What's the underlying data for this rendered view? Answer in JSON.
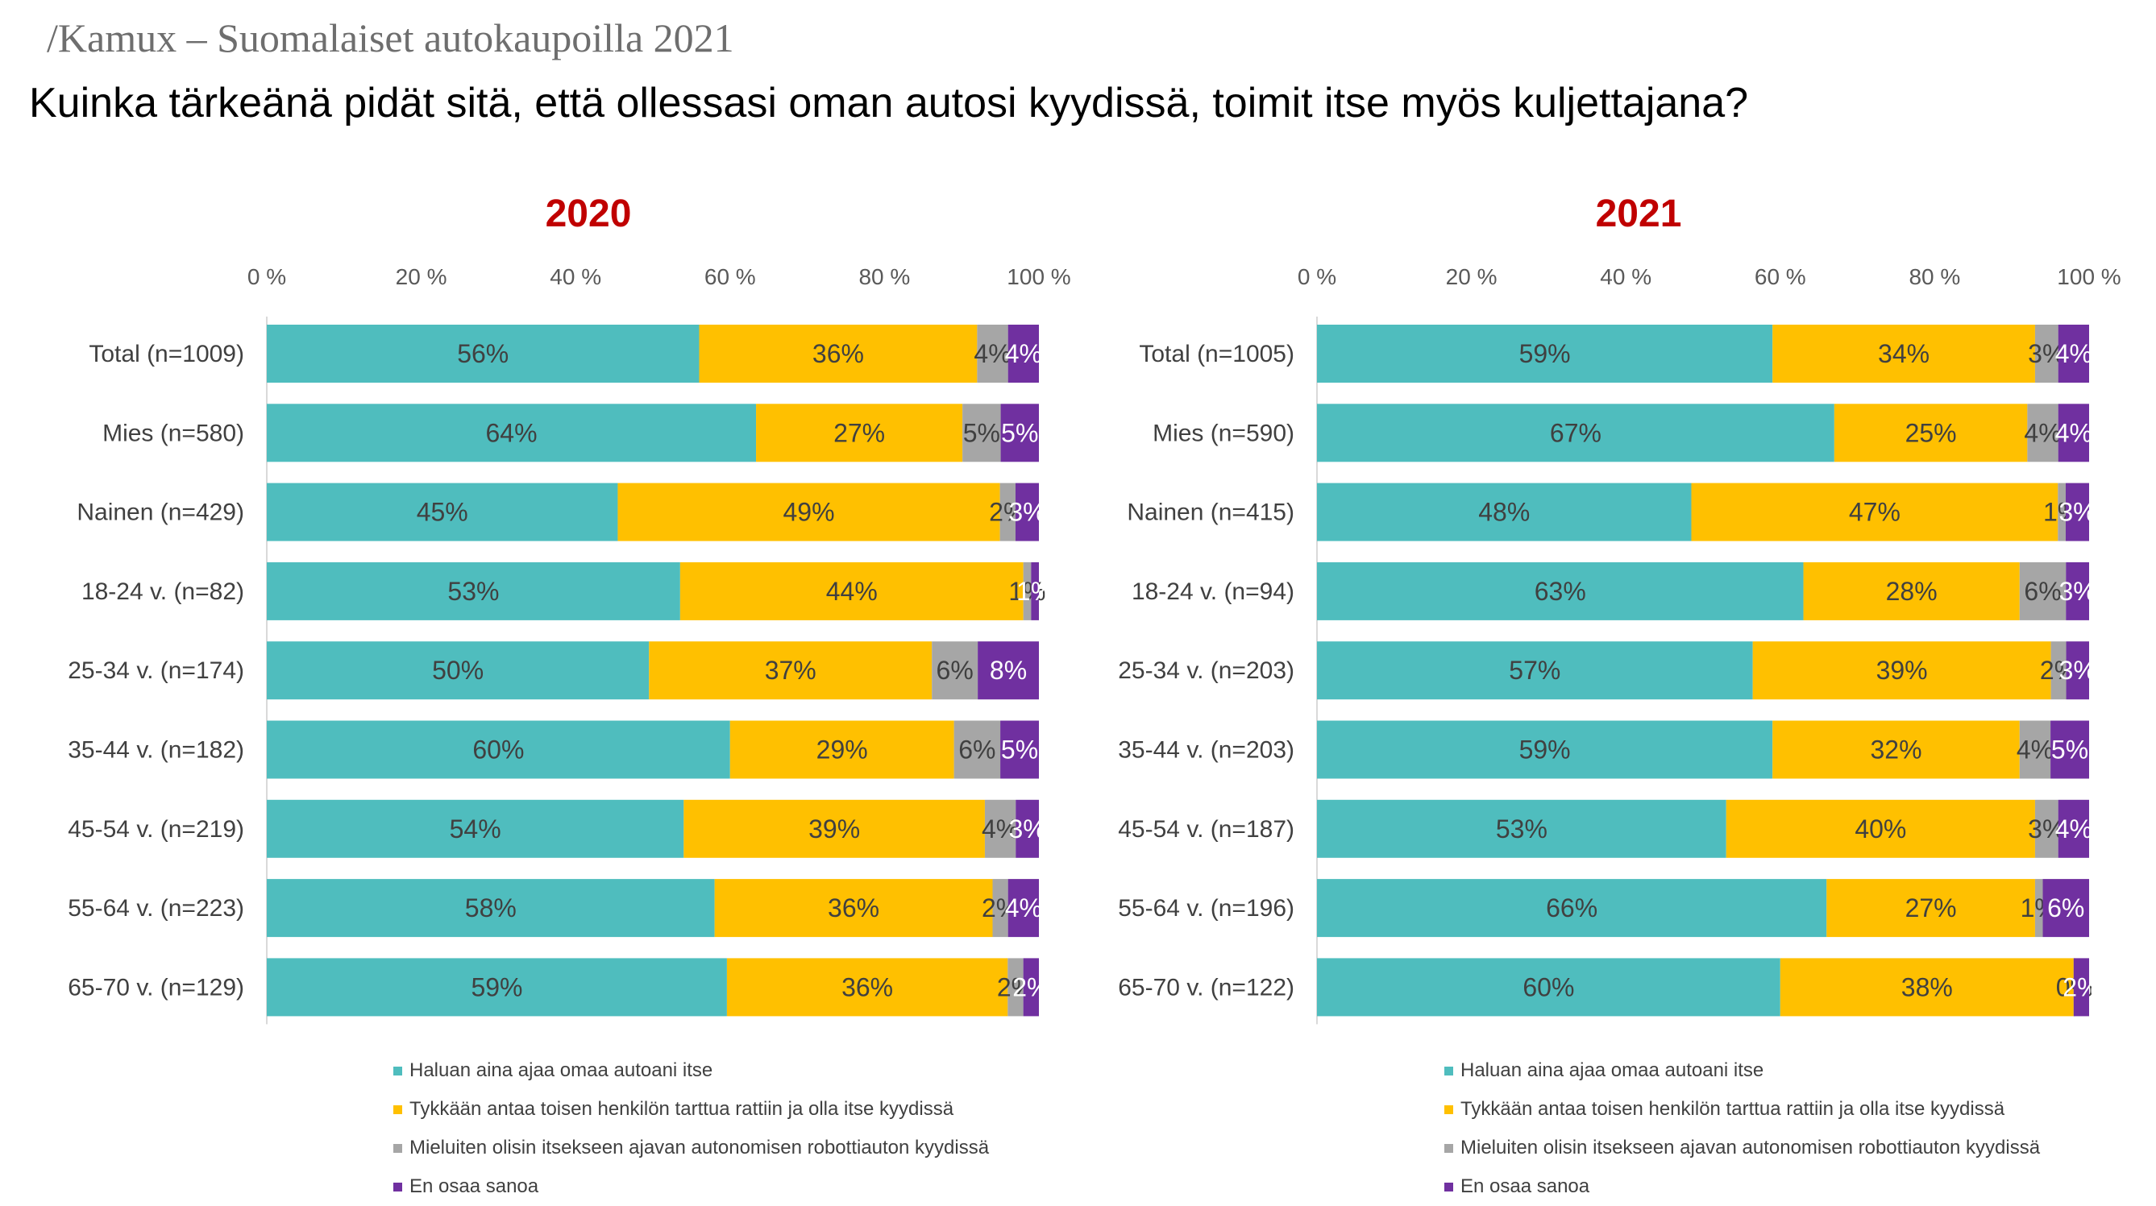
{
  "header": {
    "source": "/Kamux – Suomalaiset autokaupoilla 2021"
  },
  "title": "Kuinka tärkeänä pidät sitä, että ollessasi oman autosi kyydissä, toimit itse myös kuljettajana?",
  "colors": {
    "series": [
      "#4fbdbe",
      "#ffc000",
      "#a6a6a6",
      "#7030a0"
    ],
    "label_text": [
      "#404040",
      "#404040",
      "#404040",
      "#ffffff"
    ],
    "chart_title": "#c00000"
  },
  "legend": [
    "Haluan aina ajaa omaa autoani itse",
    "Tykkään antaa toisen henkilön tarttua rattiin ja olla itse kyydissä",
    "Mieluiten olisin itsekseen ajavan autonomisen robottiauton kyydissä",
    "En osaa sanoa"
  ],
  "chart_data": [
    {
      "type": "bar",
      "orientation": "horizontal-stacked-100",
      "title": "2020",
      "xticks": [
        "0 %",
        "20 %",
        "40 %",
        "60 %",
        "80 %",
        "100 %"
      ],
      "xlim": [
        0,
        100
      ],
      "categories": [
        "Total (n=1009)",
        "Mies (n=580)",
        "Nainen (n=429)",
        "18-24 v. (n=82)",
        "25-34 v. (n=174)",
        "35-44 v. (n=182)",
        "45-54 v. (n=219)",
        "55-64 v. (n=223)",
        "65-70 v. (n=129)"
      ],
      "series": [
        {
          "name": "Haluan aina ajaa omaa autoani itse",
          "values": [
            56,
            64,
            45,
            53,
            50,
            60,
            54,
            58,
            59
          ],
          "labels": [
            "56%",
            "64%",
            "45%",
            "53%",
            "50%",
            "60%",
            "54%",
            "58%",
            "59%"
          ]
        },
        {
          "name": "Tykkään antaa toisen henkilön tarttua rattiin ja olla itse kyydissä",
          "values": [
            36,
            27,
            49,
            44,
            37,
            29,
            39,
            36,
            36
          ],
          "labels": [
            "36%",
            "27%",
            "49%",
            "44%",
            "37%",
            "29%",
            "39%",
            "36%",
            "36%"
          ]
        },
        {
          "name": "Mieluiten olisin itsekseen ajavan autonomisen robottiauton kyydissä",
          "values": [
            4,
            5,
            2,
            1,
            6,
            6,
            4,
            2,
            2
          ],
          "labels": [
            "4%",
            "5%",
            "2%",
            "1%",
            "6%",
            "6%",
            "4%",
            "2%",
            "2%"
          ]
        },
        {
          "name": "En osaa sanoa",
          "values": [
            4,
            5,
            3,
            1,
            8,
            5,
            3,
            4,
            2
          ],
          "labels": [
            "4%",
            "5%",
            "3%",
            "1%",
            "8%",
            "5%",
            "3%",
            "4%",
            "2%"
          ]
        }
      ]
    },
    {
      "type": "bar",
      "orientation": "horizontal-stacked-100",
      "title": "2021",
      "xticks": [
        "0 %",
        "20 %",
        "40 %",
        "60 %",
        "80 %",
        "100 %"
      ],
      "xlim": [
        0,
        100
      ],
      "categories": [
        "Total (n=1005)",
        "Mies (n=590)",
        "Nainen (n=415)",
        "18-24 v. (n=94)",
        "25-34 v. (n=203)",
        "35-44 v. (n=203)",
        "45-54 v. (n=187)",
        "55-64 v. (n=196)",
        "65-70 v. (n=122)"
      ],
      "series": [
        {
          "name": "Haluan aina ajaa omaa autoani itse",
          "values": [
            59,
            67,
            48,
            63,
            57,
            59,
            53,
            66,
            60
          ],
          "labels": [
            "59%",
            "67%",
            "48%",
            "63%",
            "57%",
            "59%",
            "53%",
            "66%",
            "60%"
          ]
        },
        {
          "name": "Tykkään antaa toisen henkilön tarttua rattiin ja olla itse kyydissä",
          "values": [
            34,
            25,
            47,
            28,
            39,
            32,
            40,
            27,
            38
          ],
          "labels": [
            "34%",
            "25%",
            "47%",
            "28%",
            "39%",
            "32%",
            "40%",
            "27%",
            "38%"
          ]
        },
        {
          "name": "Mieluiten olisin itsekseen ajavan autonomisen robottiauton kyydissä",
          "values": [
            3,
            4,
            1,
            6,
            2,
            4,
            3,
            1,
            0
          ],
          "labels": [
            "3%",
            "4%",
            "1%",
            "6%",
            "2%",
            "4%",
            "3%",
            "1%",
            "0%"
          ]
        },
        {
          "name": "En osaa sanoa",
          "values": [
            4,
            4,
            3,
            3,
            3,
            5,
            4,
            6,
            2
          ],
          "labels": [
            "4%",
            "4%",
            "3%",
            "3%",
            "3%",
            "5%",
            "4%",
            "6%",
            "2%"
          ]
        }
      ]
    }
  ]
}
